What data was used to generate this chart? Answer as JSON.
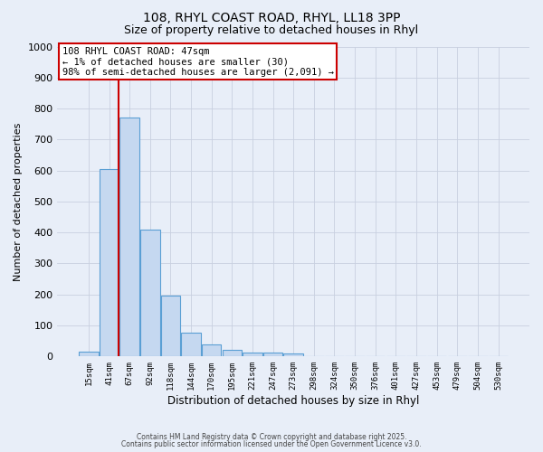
{
  "title_line1": "108, RHYL COAST ROAD, RHYL, LL18 3PP",
  "title_line2": "Size of property relative to detached houses in Rhyl",
  "xlabel": "Distribution of detached houses by size in Rhyl",
  "ylabel": "Number of detached properties",
  "bar_color": "#c5d8f0",
  "bar_edge_color": "#5a9fd4",
  "background_color": "#e8eef8",
  "categories": [
    "15sqm",
    "41sqm",
    "67sqm",
    "92sqm",
    "118sqm",
    "144sqm",
    "170sqm",
    "195sqm",
    "221sqm",
    "247sqm",
    "273sqm",
    "298sqm",
    "324sqm",
    "350sqm",
    "376sqm",
    "401sqm",
    "427sqm",
    "453sqm",
    "479sqm",
    "504sqm",
    "530sqm"
  ],
  "values": [
    15,
    605,
    770,
    410,
    195,
    78,
    38,
    20,
    12,
    12,
    10,
    0,
    0,
    0,
    0,
    0,
    0,
    0,
    0,
    0,
    0
  ],
  "ylim": [
    0,
    1000
  ],
  "yticks": [
    0,
    100,
    200,
    300,
    400,
    500,
    600,
    700,
    800,
    900,
    1000
  ],
  "property_line_color": "#cc0000",
  "annotation_line1": "108 RHYL COAST ROAD: 47sqm",
  "annotation_line2": "← 1% of detached houses are smaller (30)",
  "annotation_line3": "98% of semi-detached houses are larger (2,091) →",
  "annotation_box_color": "#ffffff",
  "annotation_border_color": "#cc0000",
  "footer_line1": "Contains HM Land Registry data © Crown copyright and database right 2025.",
  "footer_line2": "Contains public sector information licensed under the Open Government Licence v3.0.",
  "grid_color": "#c8d0e0",
  "title_fontsize": 10,
  "subtitle_fontsize": 9
}
